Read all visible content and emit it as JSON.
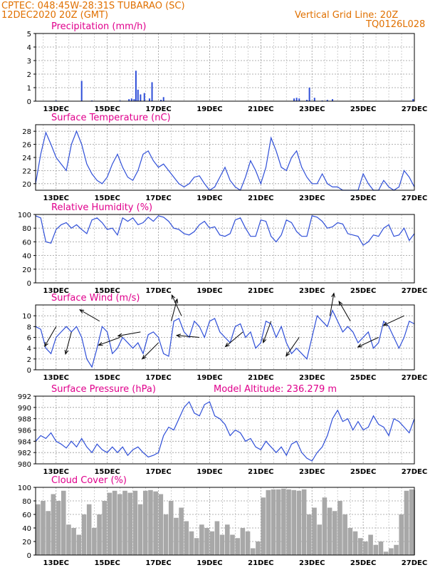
{
  "header": {
    "left_line1": "CPTEC:   048:45W-28:31S  TUBARAO (SC)",
    "left_line2": "12DEC2020 20Z (GMT)",
    "right_line1": "Vertical Grid Line: 20Z",
    "right_line2": "TQ0126L028"
  },
  "colors": {
    "series": "#2f4fd8",
    "cloud": "#a8a8a8",
    "title": "#e0008c",
    "header": "#e07000",
    "wind": "#000000"
  },
  "x_labels": [
    "13DEC",
    "15DEC",
    "17DEC",
    "19DEC",
    "21DEC",
    "23DEC",
    "25DEC",
    "27DEC"
  ],
  "chart_data": [
    {
      "type": "bar",
      "title": "Precipitation (mm/h)",
      "ylim": [
        0,
        5
      ],
      "yticks": [
        "0",
        "1",
        "2",
        "3",
        "4",
        "5"
      ],
      "x": [
        13.0,
        14.0,
        14.4,
        15.5,
        15.85,
        15.95,
        16.05,
        16.12,
        16.2,
        16.3,
        16.45,
        16.65,
        16.75,
        17.1,
        17.2,
        22.3,
        22.4,
        22.5,
        22.8,
        22.9,
        23.1,
        23.4,
        23.6,
        23.8,
        26.95
      ],
      "values": [
        0.05,
        1.5,
        0.05,
        0.05,
        0.15,
        0.2,
        0.15,
        2.25,
        0.85,
        0.5,
        0.6,
        0.2,
        1.4,
        0.1,
        0.3,
        0.2,
        0.25,
        0.2,
        0.1,
        1.0,
        0.25,
        0.05,
        0.1,
        0.15,
        0.15
      ]
    },
    {
      "type": "line",
      "title": "Surface Temperature (nC)",
      "ylim": [
        19,
        29
      ],
      "yticks": [
        "20",
        "22",
        "24",
        "26",
        "28"
      ],
      "x": [
        12.2,
        12.4,
        12.6,
        12.8,
        13.0,
        13.2,
        13.4,
        13.6,
        13.8,
        14.0,
        14.2,
        14.4,
        14.6,
        14.8,
        15.0,
        15.2,
        15.4,
        15.6,
        15.8,
        16.0,
        16.2,
        16.4,
        16.6,
        16.8,
        17.0,
        17.2,
        17.4,
        17.6,
        17.8,
        18.0,
        18.2,
        18.4,
        18.6,
        18.8,
        19.0,
        19.2,
        19.4,
        19.6,
        19.8,
        20.0,
        20.2,
        20.4,
        20.6,
        20.8,
        21.0,
        21.2,
        21.4,
        21.6,
        21.8,
        22.0,
        22.2,
        22.4,
        22.6,
        22.8,
        23.0,
        23.2,
        23.4,
        23.6,
        23.8,
        24.0,
        24.2,
        24.4,
        24.6,
        24.8,
        25.0,
        25.2,
        25.4,
        25.6,
        25.8,
        26.0,
        26.2,
        26.4,
        26.6,
        26.8,
        27.0
      ],
      "values": [
        20.0,
        24.5,
        27.8,
        26.0,
        24.0,
        23.0,
        22.0,
        26.0,
        28.0,
        26.0,
        23.0,
        21.5,
        20.5,
        20.0,
        21.0,
        23.0,
        24.5,
        22.5,
        21.0,
        20.5,
        22.0,
        24.5,
        25.0,
        23.5,
        22.5,
        23.0,
        22.0,
        21.0,
        20.0,
        19.5,
        20.0,
        21.0,
        21.2,
        20.0,
        19.0,
        19.5,
        21.0,
        22.5,
        20.5,
        19.5,
        19.0,
        21.0,
        23.5,
        22.0,
        20.0,
        22.5,
        27.0,
        25.0,
        22.5,
        22.0,
        24.0,
        25.0,
        22.5,
        21.0,
        20.0,
        20.0,
        21.5,
        20.0,
        19.5,
        19.5,
        19.0,
        19.0,
        19.0,
        19.0,
        21.5,
        20.0,
        19.0,
        19.0,
        20.5,
        19.5,
        19.0,
        19.5,
        22.0,
        21.0,
        19.5
      ]
    },
    {
      "type": "line",
      "title": "Relative Humidity (%)",
      "ylim": [
        0,
        100
      ],
      "yticks": [
        "0",
        "20",
        "40",
        "60",
        "80",
        "100"
      ],
      "x": [
        12.2,
        12.4,
        12.6,
        12.8,
        13.0,
        13.2,
        13.4,
        13.6,
        13.8,
        14.0,
        14.2,
        14.4,
        14.6,
        14.8,
        15.0,
        15.2,
        15.4,
        15.6,
        15.8,
        16.0,
        16.2,
        16.4,
        16.6,
        16.8,
        17.0,
        17.2,
        17.4,
        17.6,
        17.8,
        18.0,
        18.2,
        18.4,
        18.6,
        18.8,
        19.0,
        19.2,
        19.4,
        19.6,
        19.8,
        20.0,
        20.2,
        20.4,
        20.6,
        20.8,
        21.0,
        21.2,
        21.4,
        21.6,
        21.8,
        22.0,
        22.2,
        22.4,
        22.6,
        22.8,
        23.0,
        23.2,
        23.4,
        23.6,
        23.8,
        24.0,
        24.2,
        24.4,
        24.6,
        24.8,
        25.0,
        25.2,
        25.4,
        25.6,
        25.8,
        26.0,
        26.2,
        26.4,
        26.6,
        26.8,
        27.0
      ],
      "values": [
        98,
        95,
        60,
        58,
        78,
        85,
        88,
        80,
        85,
        78,
        72,
        92,
        95,
        88,
        78,
        80,
        70,
        95,
        90,
        95,
        85,
        88,
        96,
        90,
        98,
        96,
        90,
        80,
        78,
        72,
        70,
        75,
        85,
        90,
        80,
        82,
        70,
        68,
        72,
        92,
        95,
        80,
        68,
        68,
        92,
        90,
        68,
        60,
        70,
        92,
        88,
        75,
        68,
        68,
        98,
        96,
        90,
        80,
        82,
        88,
        86,
        72,
        70,
        68,
        55,
        60,
        70,
        68,
        80,
        85,
        68,
        70,
        80,
        62,
        72
      ]
    },
    {
      "type": "line",
      "title": "Surface Wind (m/s)",
      "ylim": [
        0,
        12
      ],
      "yticks": [
        "0",
        "2",
        "4",
        "6",
        "8",
        "10"
      ],
      "x": [
        12.2,
        12.4,
        12.6,
        12.8,
        13.0,
        13.2,
        13.4,
        13.6,
        13.8,
        14.0,
        14.2,
        14.4,
        14.6,
        14.8,
        15.0,
        15.2,
        15.4,
        15.6,
        15.8,
        16.0,
        16.2,
        16.4,
        16.6,
        16.8,
        17.0,
        17.2,
        17.4,
        17.6,
        17.8,
        18.0,
        18.2,
        18.4,
        18.6,
        18.8,
        19.0,
        19.2,
        19.4,
        19.6,
        19.8,
        20.0,
        20.2,
        20.4,
        20.6,
        20.8,
        21.0,
        21.2,
        21.4,
        21.6,
        21.8,
        22.0,
        22.2,
        22.4,
        22.6,
        22.8,
        23.0,
        23.2,
        23.4,
        23.6,
        23.8,
        24.0,
        24.2,
        24.4,
        24.6,
        24.8,
        25.0,
        25.2,
        25.4,
        25.6,
        25.8,
        26.0,
        26.2,
        26.4,
        26.6,
        26.8,
        27.0
      ],
      "values": [
        8,
        7.5,
        4,
        3,
        6,
        7,
        8,
        7,
        8,
        6,
        2,
        0.5,
        4,
        8,
        7,
        3,
        4,
        6,
        5,
        4,
        5,
        3,
        6.5,
        7,
        6,
        3,
        2.5,
        9,
        9.5,
        7,
        6,
        9,
        8,
        6,
        9,
        9.5,
        7,
        6,
        5,
        8,
        8.5,
        6,
        7,
        4,
        5,
        9,
        8.5,
        6,
        8,
        5,
        3,
        4,
        3,
        2,
        6,
        10,
        9,
        8,
        11,
        9,
        7,
        8,
        7,
        5,
        6,
        7,
        4,
        5,
        9,
        8,
        6,
        4,
        6,
        9,
        8.5
      ],
      "wind_x": [
        13.0,
        13.6,
        14.7,
        15.5,
        16.3,
        17.0,
        17.5,
        17.9,
        18.6,
        20.3,
        21.4,
        22.5,
        23.7,
        24.5,
        25.6,
        26.6
      ],
      "wind_speed": [
        8,
        7,
        9,
        6,
        7,
        5,
        9,
        10,
        6,
        7,
        9,
        6,
        10,
        9,
        6,
        10
      ],
      "wind_angle": [
        240,
        255,
        150,
        200,
        190,
        225,
        75,
        115,
        175,
        220,
        250,
        235,
        80,
        120,
        205,
        205
      ]
    },
    {
      "type": "line",
      "title": "Surface Pressure (hPa)",
      "subtitle": "Model Altitude: 236.279 m",
      "ylim": [
        980,
        992
      ],
      "yticks": [
        "980",
        "982",
        "984",
        "986",
        "988",
        "990",
        "992"
      ],
      "x": [
        12.2,
        12.4,
        12.6,
        12.8,
        13.0,
        13.2,
        13.4,
        13.6,
        13.8,
        14.0,
        14.2,
        14.4,
        14.6,
        14.8,
        15.0,
        15.2,
        15.4,
        15.6,
        15.8,
        16.0,
        16.2,
        16.4,
        16.6,
        16.8,
        17.0,
        17.2,
        17.4,
        17.6,
        17.8,
        18.0,
        18.2,
        18.4,
        18.6,
        18.8,
        19.0,
        19.2,
        19.4,
        19.6,
        19.8,
        20.0,
        20.2,
        20.4,
        20.6,
        20.8,
        21.0,
        21.2,
        21.4,
        21.6,
        21.8,
        22.0,
        22.2,
        22.4,
        22.6,
        22.8,
        23.0,
        23.2,
        23.4,
        23.6,
        23.8,
        24.0,
        24.2,
        24.4,
        24.6,
        24.8,
        25.0,
        25.2,
        25.4,
        25.6,
        25.8,
        26.0,
        26.2,
        26.4,
        26.6,
        26.8,
        27.0
      ],
      "values": [
        984,
        985,
        984.5,
        985.5,
        984,
        983.5,
        982.8,
        984,
        983,
        984.5,
        983,
        982,
        983.5,
        982.5,
        982,
        983,
        982,
        983,
        981.5,
        982.5,
        983,
        982,
        981.2,
        981.5,
        982,
        985,
        986.5,
        986,
        988,
        990,
        991,
        989,
        988.5,
        990.5,
        991,
        988.5,
        988,
        987,
        985,
        986,
        985.5,
        984,
        984.5,
        983,
        982.5,
        984,
        983,
        982,
        983,
        981.5,
        983.5,
        984,
        982,
        981,
        980.5,
        982,
        983,
        985,
        988,
        989.5,
        987.5,
        988,
        986,
        987.5,
        986,
        986.5,
        988.5,
        987,
        986.5,
        985,
        988,
        987.5,
        986.5,
        985.5,
        988
      ]
    },
    {
      "type": "area",
      "title": "Cloud Cover (%)",
      "ylim": [
        0,
        100
      ],
      "yticks": [
        "0",
        "20",
        "40",
        "60",
        "80",
        "100"
      ],
      "x": [
        12.2,
        12.4,
        12.6,
        12.8,
        13.0,
        13.2,
        13.4,
        13.6,
        13.8,
        14.0,
        14.2,
        14.4,
        14.6,
        14.8,
        15.0,
        15.2,
        15.4,
        15.6,
        15.8,
        16.0,
        16.2,
        16.4,
        16.6,
        16.8,
        17.0,
        17.2,
        17.4,
        17.6,
        17.8,
        18.0,
        18.2,
        18.4,
        18.6,
        18.8,
        19.0,
        19.2,
        19.4,
        19.6,
        19.8,
        20.0,
        20.2,
        20.4,
        20.6,
        20.8,
        21.0,
        21.2,
        21.4,
        21.6,
        21.8,
        22.0,
        22.2,
        22.4,
        22.6,
        22.8,
        23.0,
        23.2,
        23.4,
        23.6,
        23.8,
        24.0,
        24.2,
        24.4,
        24.6,
        24.8,
        25.0,
        25.2,
        25.4,
        25.6,
        25.8,
        26.0,
        26.2,
        26.4,
        26.6,
        26.8,
        27.0
      ],
      "values": [
        75,
        80,
        65,
        90,
        80,
        95,
        45,
        40,
        30,
        60,
        75,
        40,
        60,
        80,
        92,
        95,
        90,
        95,
        92,
        95,
        75,
        95,
        96,
        94,
        90,
        60,
        80,
        55,
        70,
        50,
        35,
        25,
        45,
        40,
        35,
        50,
        30,
        45,
        30,
        25,
        40,
        35,
        10,
        20,
        85,
        96,
        97,
        97,
        98,
        97,
        96,
        95,
        97,
        60,
        70,
        45,
        85,
        70,
        65,
        80,
        60,
        40,
        35,
        25,
        20,
        30,
        15,
        20,
        5,
        10,
        15,
        60,
        95,
        97,
        96
      ]
    }
  ]
}
